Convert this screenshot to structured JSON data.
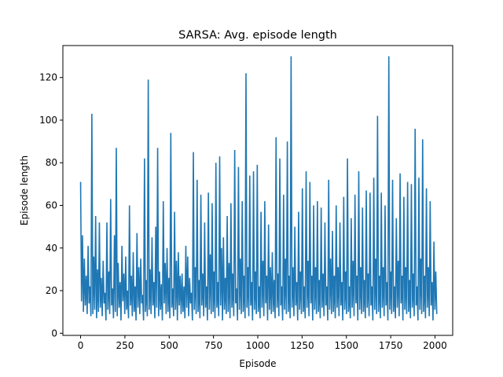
{
  "chart_data": {
    "type": "line",
    "title": "SARSA: Avg. episode length",
    "xlabel": "Episode",
    "ylabel": "Episode length",
    "xlim": [
      -100,
      2100
    ],
    "ylim": [
      -1,
      135
    ],
    "xticks": [
      0,
      250,
      500,
      750,
      1000,
      1250,
      1500,
      1750,
      2000
    ],
    "yticks": [
      0,
      20,
      40,
      60,
      80,
      100,
      120
    ],
    "xtick_labels": [
      "0",
      "250",
      "500",
      "750",
      "1000",
      "1250",
      "1500",
      "1750",
      "2000"
    ],
    "ytick_labels": [
      "0",
      "20",
      "40",
      "60",
      "80",
      "100",
      "120"
    ],
    "grid": false,
    "series_color": "#1f77b4",
    "series": [
      {
        "x_start": 0,
        "x_end": 2010,
        "values": [
          71,
          15,
          46,
          10,
          35,
          13,
          27,
          9,
          41,
          14,
          22,
          8,
          103,
          9,
          36,
          11,
          55,
          7,
          30,
          10,
          52,
          12,
          26,
          8,
          34,
          14,
          19,
          6,
          52,
          11,
          29,
          9,
          63,
          13,
          21,
          7,
          46,
          10,
          87,
          8,
          33,
          12,
          24,
          6,
          41,
          15,
          28,
          9,
          36,
          11,
          20,
          7,
          60,
          13,
          27,
          8,
          38,
          10,
          22,
          6,
          47,
          12,
          31,
          9,
          35,
          14,
          18,
          6,
          82,
          10,
          25,
          8,
          119,
          11,
          30,
          9,
          45,
          13,
          24,
          7,
          50,
          12,
          87,
          8,
          29,
          11,
          23,
          6,
          62,
          14,
          33,
          9,
          40,
          10,
          26,
          7,
          94,
          12,
          21,
          8,
          57,
          11,
          34,
          6,
          38,
          13,
          27,
          9,
          28,
          10,
          22,
          7,
          41,
          12,
          36,
          8,
          26,
          14,
          19,
          6,
          85,
          11,
          31,
          9,
          72,
          10,
          25,
          7,
          65,
          13,
          28,
          8,
          52,
          12,
          22,
          6,
          66,
          11,
          37,
          9,
          61,
          10,
          29,
          7,
          80,
          12,
          24,
          8,
          83,
          13,
          40,
          6,
          45,
          11,
          26,
          9,
          55,
          10,
          33,
          7,
          61,
          12,
          28,
          8,
          86,
          14,
          21,
          6,
          78,
          11,
          35,
          9,
          62,
          10,
          27,
          7,
          122,
          12,
          31,
          8,
          74,
          13,
          24,
          6,
          76,
          11,
          29,
          9,
          79,
          10,
          22,
          7,
          57,
          12,
          34,
          8,
          62,
          14,
          27,
          6,
          51,
          11,
          31,
          9,
          38,
          10,
          25,
          7,
          92,
          12,
          28,
          8,
          82,
          13,
          22,
          6,
          65,
          11,
          35,
          9,
          90,
          10,
          27,
          7,
          130,
          12,
          31,
          8,
          50,
          13,
          24,
          6,
          57,
          11,
          29,
          9,
          68,
          10,
          22,
          7,
          76,
          12,
          34,
          8,
          71,
          14,
          27,
          6,
          60,
          11,
          31,
          9,
          62,
          10,
          25,
          7,
          59,
          12,
          28,
          8,
          52,
          13,
          22,
          6,
          72,
          11,
          35,
          9,
          48,
          10,
          27,
          7,
          60,
          12,
          31,
          8,
          52,
          13,
          24,
          6,
          64,
          11,
          29,
          9,
          82,
          10,
          22,
          7,
          54,
          12,
          34,
          8,
          65,
          14,
          27,
          6,
          76,
          11,
          31,
          9,
          59,
          10,
          25,
          7,
          67,
          12,
          28,
          8,
          66,
          13,
          22,
          6,
          73,
          11,
          35,
          9,
          102,
          10,
          27,
          7,
          66,
          12,
          31,
          8,
          60,
          13,
          24,
          6,
          130,
          11,
          29,
          9,
          72,
          10,
          22,
          7,
          54,
          12,
          34,
          8,
          75,
          14,
          27,
          6,
          64,
          11,
          31,
          9,
          71,
          10,
          25,
          7,
          70,
          12,
          28,
          8,
          96,
          13,
          22,
          6,
          73,
          11,
          35,
          9,
          91,
          10,
          27,
          7,
          68,
          12,
          31,
          8,
          62,
          13,
          24,
          6,
          43,
          11,
          29,
          9
        ]
      }
    ]
  }
}
